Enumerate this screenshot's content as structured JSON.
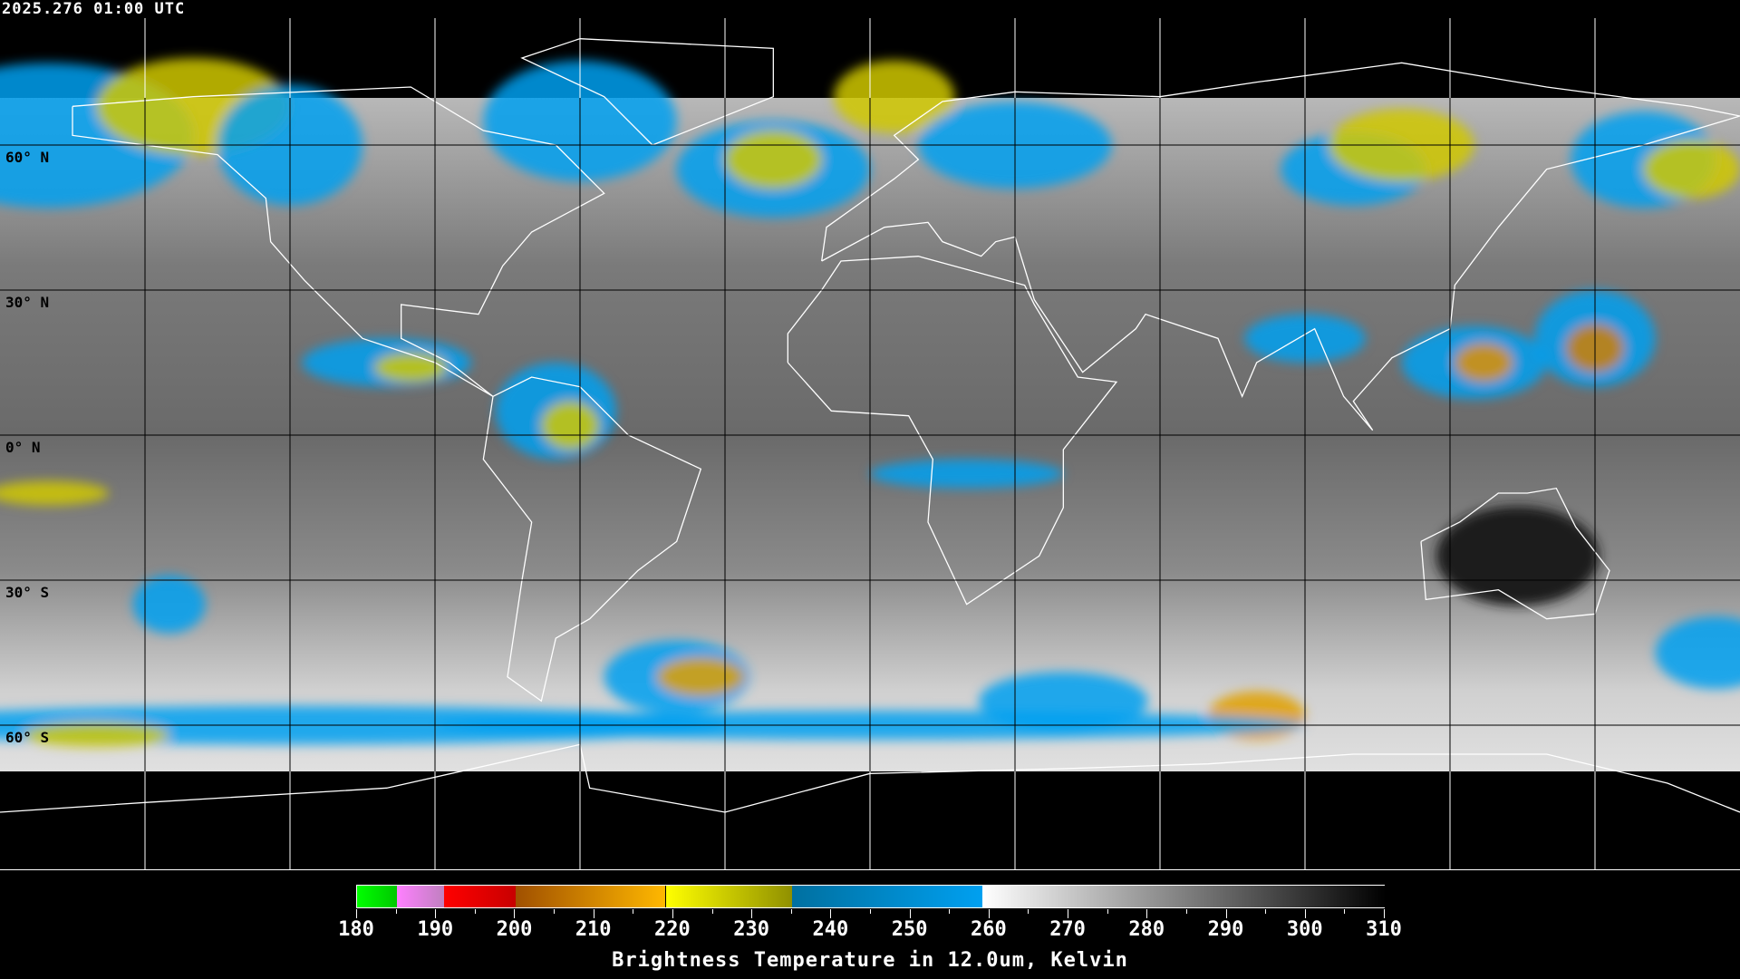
{
  "header": {
    "timestamp": "2025.276 01:00 UTC"
  },
  "map": {
    "projection": "equirectangular",
    "center_longitude": 0,
    "grid_spacing_degrees": 30,
    "lat_labels": [
      "60° N",
      "30° N",
      "0° N",
      "30° S",
      "60° S"
    ],
    "coastline_color": "#ffffff (outside data), #000000 (inside data)",
    "gridline_color_outside_data": "#ffffff",
    "gridline_color_inside_data": "#000000"
  },
  "colorbar": {
    "title": "Brightness Temperature in 12.0um, Kelvin",
    "tick_labels": [
      "180",
      "190",
      "200",
      "210",
      "220",
      "230",
      "240",
      "250",
      "260",
      "270",
      "280",
      "290",
      "300",
      "310"
    ],
    "range": [
      180,
      310
    ],
    "segments": [
      {
        "from": 180,
        "to": 185,
        "colors": [
          "#00ff00",
          "#00c800"
        ]
      },
      {
        "from": 185,
        "to": 191,
        "colors": [
          "#ff80ff",
          "#c080c0"
        ]
      },
      {
        "from": 191,
        "to": 200,
        "colors": [
          "#ff0000",
          "#c80000"
        ]
      },
      {
        "from": 200,
        "to": 219,
        "colors": [
          "#a05000",
          "#ffb800"
        ]
      },
      {
        "from": 219,
        "to": 235,
        "colors": [
          "#ffff00",
          "#909000"
        ]
      },
      {
        "from": 235,
        "to": 259,
        "colors": [
          "#0070a0",
          "#00a0f0"
        ]
      },
      {
        "from": 259,
        "to": 310,
        "colors": [
          "#ffffff",
          "#000000"
        ]
      }
    ]
  }
}
